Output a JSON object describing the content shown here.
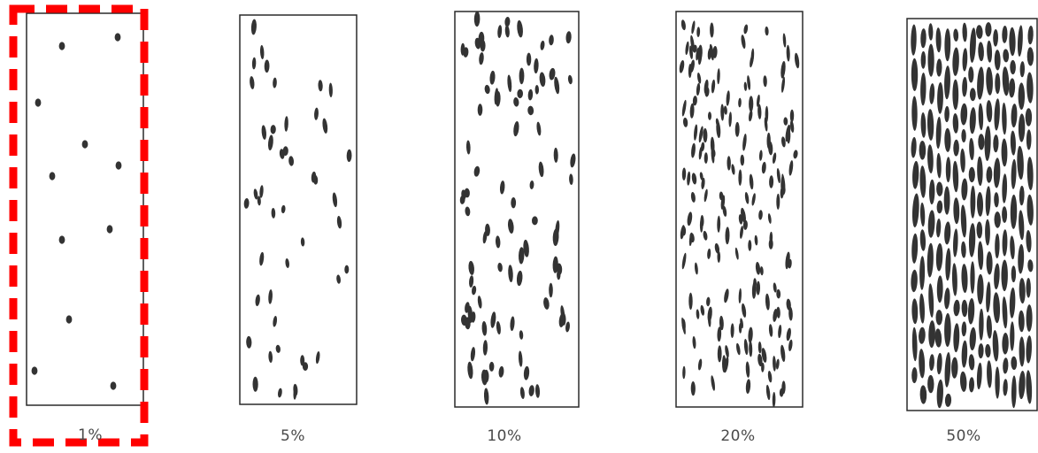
{
  "panels": [
    {
      "id": "p1",
      "label": "1%",
      "fraction": 0.01,
      "selected": true
    },
    {
      "id": "p5",
      "label": "5%",
      "fraction": 0.05,
      "selected": false
    },
    {
      "id": "p10",
      "label": "10%",
      "fraction": 0.1,
      "selected": false
    },
    {
      "id": "p20",
      "label": "20%",
      "fraction": 0.2,
      "selected": false
    },
    {
      "id": "p50",
      "label": "50%",
      "fraction": 0.5,
      "selected": false
    }
  ],
  "colors": {
    "ink": "#333333",
    "border": "#2a2a2a",
    "highlight": "#ff0000",
    "label": "#4a4a4a",
    "background": "#ffffff"
  }
}
